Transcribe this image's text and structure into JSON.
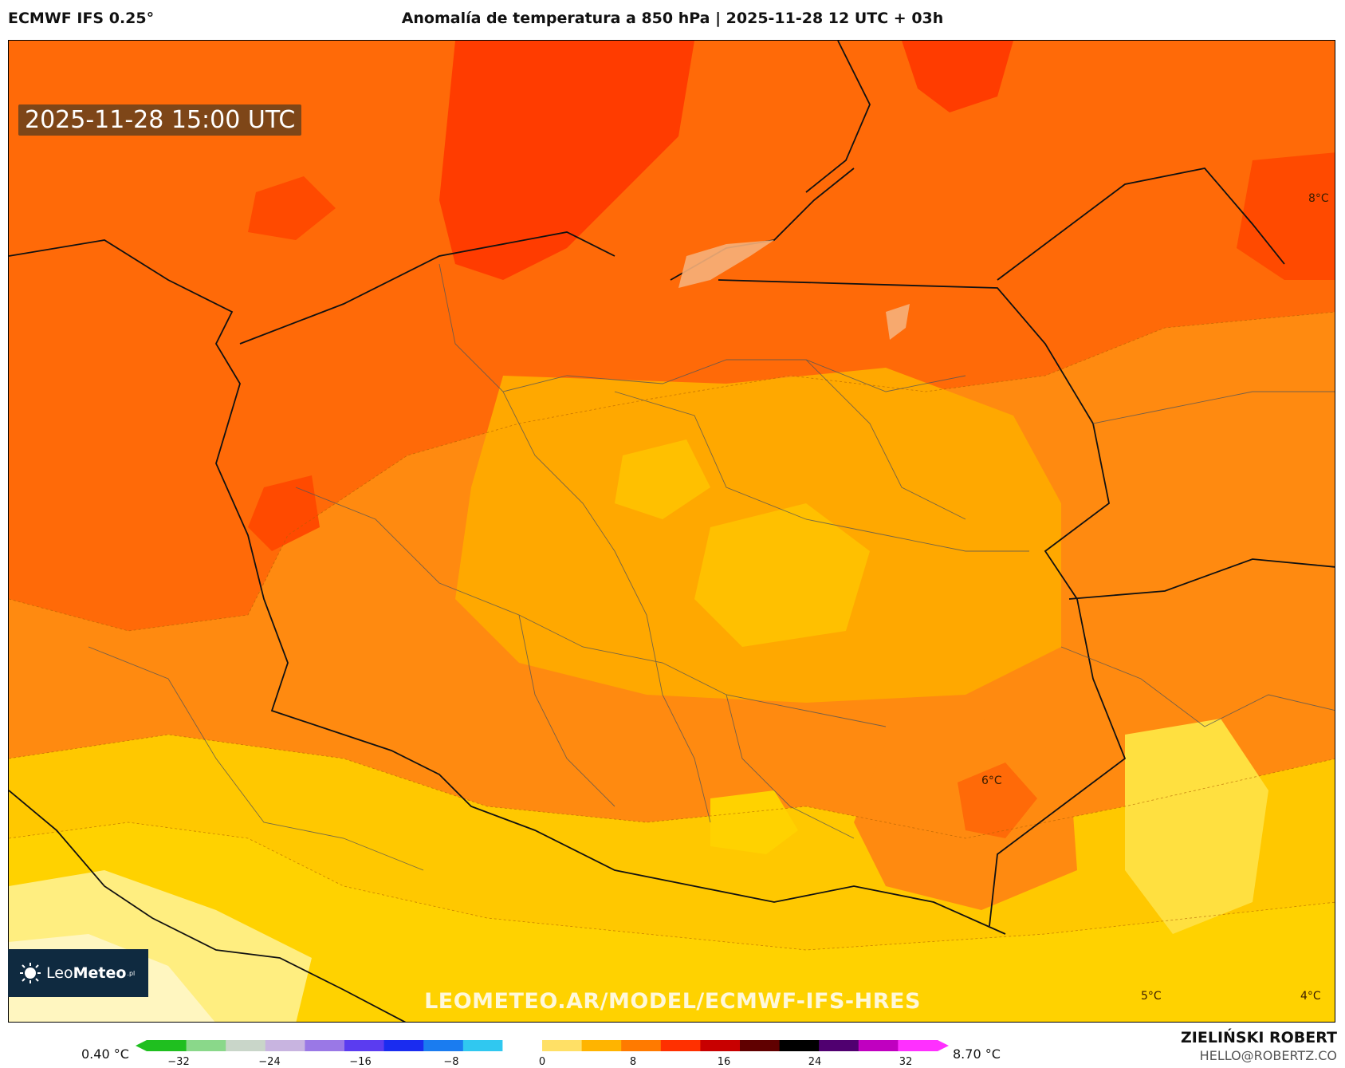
{
  "header": {
    "model": "ECMWF IFS 0.25°",
    "title": "Anomalía de temperatura a 850 hPa | 2025-11-28 12 UTC + 03h"
  },
  "map": {
    "valid_time": "2025-11-28 15:00 UTC",
    "logo": {
      "brand_light": "Leo",
      "brand_bold": "Meteo",
      "suffix": ".pl"
    },
    "watermark": "LEOMETEO.AR/MODEL/ECMWF-IFS-HRES",
    "labels": {
      "ne": "8°C",
      "se_center": "6°C",
      "sw_corner": "5°C",
      "se_corner": "4°C"
    }
  },
  "legend": {
    "min_label": "0.40 °C",
    "max_label": "8.70 °C",
    "ticks": [
      "−32",
      "−24",
      "−16",
      "−8",
      "0",
      "8",
      "16",
      "24",
      "32"
    ],
    "colors": [
      "#1fbf1f",
      "#8ad88a",
      "#c9d6c9",
      "#c8b4e0",
      "#9a78e6",
      "#5b3cf0",
      "#1a2cf0",
      "#1a7cf0",
      "#30c8f0",
      "#ffffff",
      "#ffe066",
      "#ffb400",
      "#ff7a00",
      "#ff3000",
      "#c80000",
      "#600000",
      "#000000",
      "#500070",
      "#c000c0",
      "#ff30ff"
    ]
  },
  "footer": {
    "author": "ZIELIŃSKI ROBERT",
    "email": "HELLO@ROBERTZ.CO"
  }
}
